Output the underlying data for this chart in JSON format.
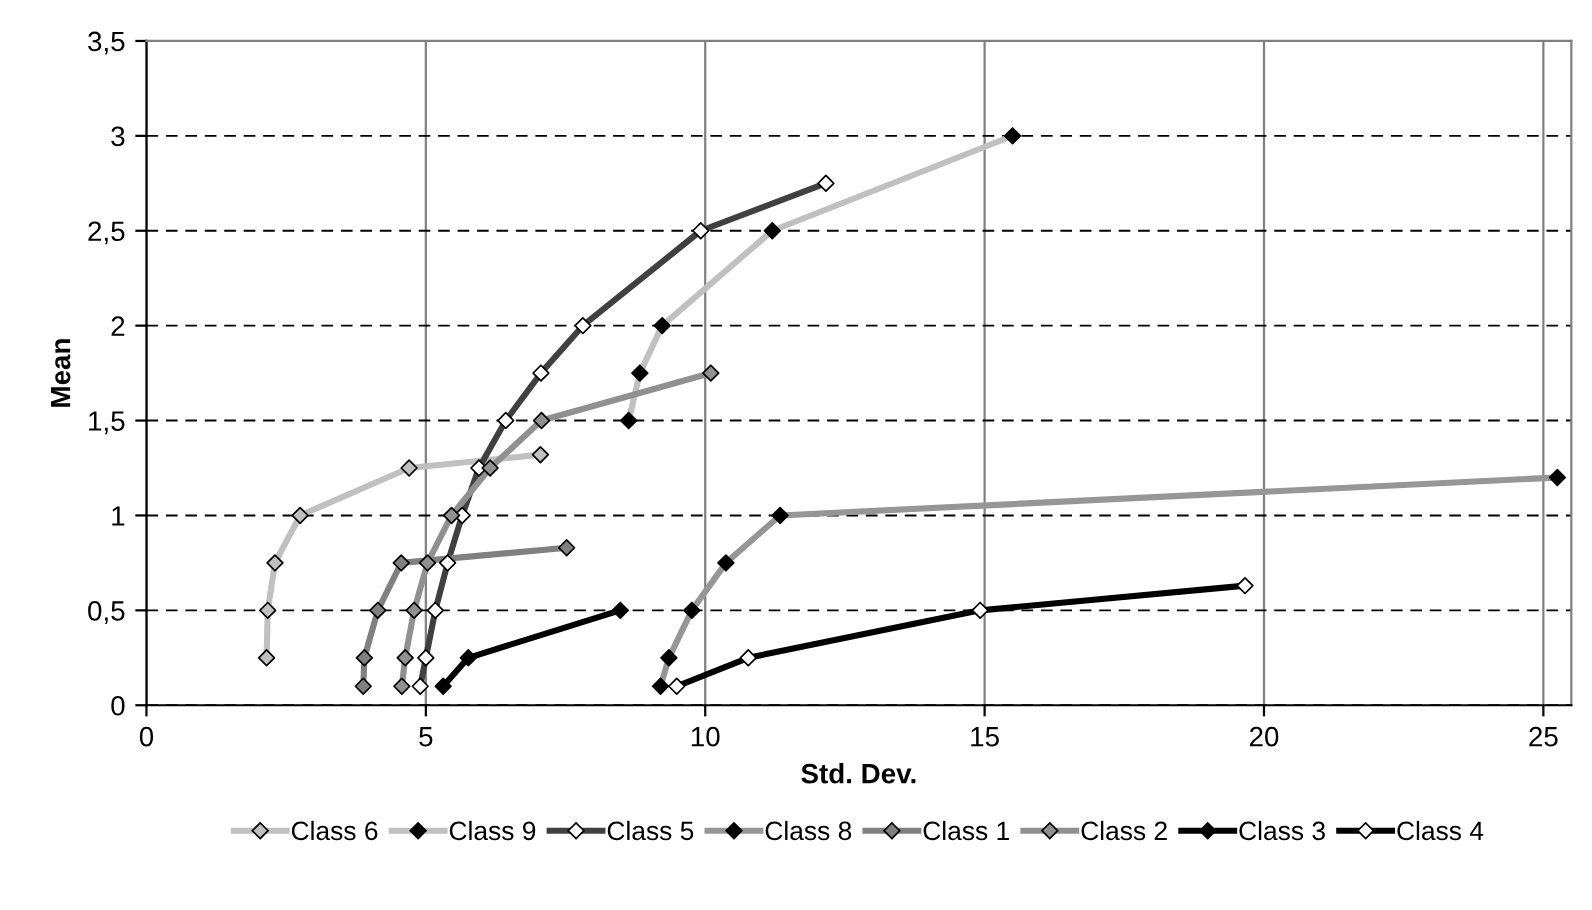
{
  "chart_data": {
    "type": "line",
    "xlabel": "Std. Dev.",
    "ylabel": "Mean",
    "xlim": [
      0,
      25.5
    ],
    "xticks": [
      0,
      5,
      10,
      15,
      20,
      25
    ],
    "ylim": [
      0,
      3.5
    ],
    "yticks": [
      0,
      {
        "value": 0.5,
        "label": "0,5"
      },
      1,
      {
        "value": 1.5,
        "label": "1,5"
      },
      2,
      {
        "value": 2.5,
        "label": "2,5"
      },
      3,
      {
        "value": 3.5,
        "label": "3,5"
      }
    ],
    "grid": true,
    "legend": "bottom",
    "marker": "diamond",
    "line_style": "solid",
    "series": [
      {
        "name": "Class 6",
        "color": "#c0c0c0",
        "colors": [
          "#c0c0c0",
          "#c0c0c0",
          "#c0c0c0",
          "#c0c0c0",
          "#c0c0c0",
          "#c0c0c0"
        ],
        "x": [
          2.15,
          2.17,
          2.3,
          2.75,
          4.7,
          7.05
        ],
        "values": [
          0.25,
          0.5,
          0.75,
          1.0,
          1.25,
          1.32
        ]
      },
      {
        "name": "Class 9",
        "color": "#c0c0c0",
        "colors": [
          "#000000",
          "#000000",
          "#000000",
          "#000000",
          "#000000"
        ],
        "x": [
          8.63,
          8.83,
          9.23,
          11.2,
          15.5
        ],
        "values": [
          1.5,
          1.75,
          2.0,
          2.5,
          3.0
        ]
      },
      {
        "name": "Class 5",
        "color": "#404040",
        "colors": [
          "#ffffff",
          "#ffffff",
          "#ffffff",
          "#ffffff",
          "#ffffff",
          "#ffffff",
          "#ffffff",
          "#ffffff",
          "#ffffff",
          "#ffffff",
          "#ffffff"
        ],
        "x": [
          4.9,
          5.0,
          5.17,
          5.39,
          5.65,
          5.95,
          6.43,
          7.06,
          7.81,
          9.92,
          12.16
        ],
        "values": [
          0.1,
          0.25,
          0.5,
          0.75,
          1.0,
          1.25,
          1.5,
          1.75,
          2.0,
          2.5,
          2.75
        ]
      },
      {
        "name": "Class 8",
        "color": "#969696",
        "colors": [
          "#000000",
          "#000000",
          "#000000",
          "#000000",
          "#000000",
          "#000000"
        ],
        "x": [
          9.2,
          9.35,
          9.76,
          10.37,
          11.34,
          25.25
        ],
        "values": [
          0.1,
          0.25,
          0.5,
          0.75,
          1.0,
          1.2
        ]
      },
      {
        "name": "Class 1",
        "color": "#808080",
        "colors": [
          "#808080",
          "#808080",
          "#808080",
          "#808080",
          "#808080"
        ],
        "x": [
          3.88,
          3.9,
          4.14,
          4.56,
          7.52
        ],
        "values": [
          0.1,
          0.25,
          0.5,
          0.75,
          0.83
        ]
      },
      {
        "name": "Class 2",
        "color": "#909090",
        "colors": [
          "#909090",
          "#909090",
          "#909090",
          "#909090",
          "#909090",
          "#909090",
          "#909090",
          "#909090"
        ],
        "x": [
          4.57,
          4.63,
          4.79,
          5.03,
          5.46,
          6.15,
          7.07,
          10.1
        ],
        "values": [
          0.1,
          0.25,
          0.5,
          0.75,
          1.0,
          1.25,
          1.5,
          1.75
        ]
      },
      {
        "name": "Class 3",
        "color": "#000000",
        "colors": [
          "#000000",
          "#000000",
          "#000000"
        ],
        "x": [
          5.31,
          5.76,
          8.48
        ],
        "values": [
          0.1,
          0.25,
          0.5
        ]
      },
      {
        "name": "Class 4",
        "color": "#000000",
        "colors": [
          "#ffffff",
          "#ffffff",
          "#ffffff",
          "#ffffff"
        ],
        "x": [
          9.49,
          10.77,
          14.92,
          19.66
        ],
        "values": [
          0.1,
          0.25,
          0.5,
          0.63
        ]
      }
    ]
  }
}
